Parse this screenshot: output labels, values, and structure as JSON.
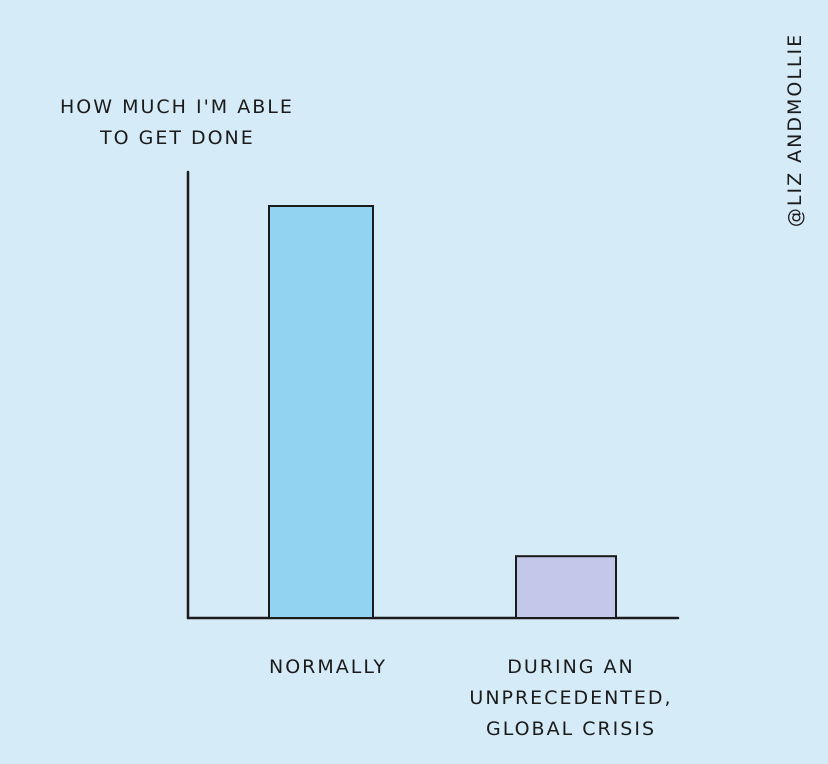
{
  "chart_data": {
    "type": "bar",
    "ylabel_lines": [
      "HOW MUCH I'M ABLE",
      "TO GET DONE"
    ],
    "categories": [
      {
        "lines": [
          "NORMALLY"
        ]
      },
      {
        "lines": [
          "DURING AN",
          "UNPRECEDENTED,",
          "GLOBAL CRISIS"
        ]
      }
    ],
    "values": [
      100,
      15
    ],
    "ylim": [
      0,
      100
    ],
    "colors": [
      "#92d3f2",
      "#c3c7ea"
    ],
    "grid": false
  },
  "credit": "@LIZ ANDMOLLIE"
}
